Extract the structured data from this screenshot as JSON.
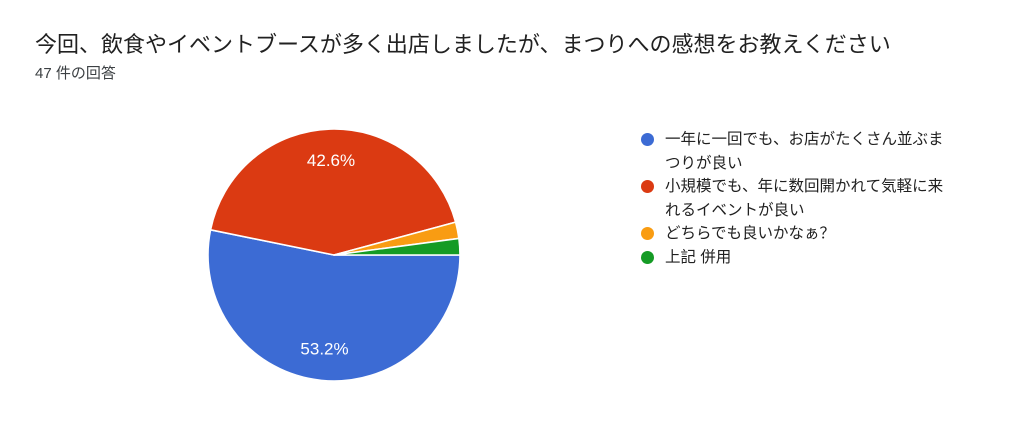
{
  "page": {
    "title": "今回、飲食やイベントブースが多く出店しましたが、まつりへの感想をお教えください",
    "response_count_label": "47 件の回答"
  },
  "chart_data": {
    "type": "pie",
    "title": "今回、飲食やイベントブースが多く出店しましたが、まつりへの感想をお教えください",
    "subtitle": "47 件の回答",
    "total_responses": 47,
    "start_angle_deg": 0,
    "direction": "clockwise",
    "legend_position": "right",
    "slices": [
      {
        "label": "一年に一回でも、お店がたくさん並ぶまつりが良い",
        "percent": 53.2,
        "display_label": "53.2%",
        "color": "#3C6BD4",
        "label_visible": true
      },
      {
        "label": "小規模でも、年に数回開かれて気軽に来れるイベントが良い",
        "percent": 42.6,
        "display_label": "42.6%",
        "color": "#DB3A12",
        "label_visible": true
      },
      {
        "label": "どちらでも良いかなぁ？",
        "percent": 2.1,
        "display_label": "2.1%",
        "color": "#F99C12",
        "label_visible": false
      },
      {
        "label": "上記 併用",
        "percent": 2.1,
        "display_label": "2.1%",
        "color": "#159B25",
        "label_visible": false
      }
    ]
  }
}
